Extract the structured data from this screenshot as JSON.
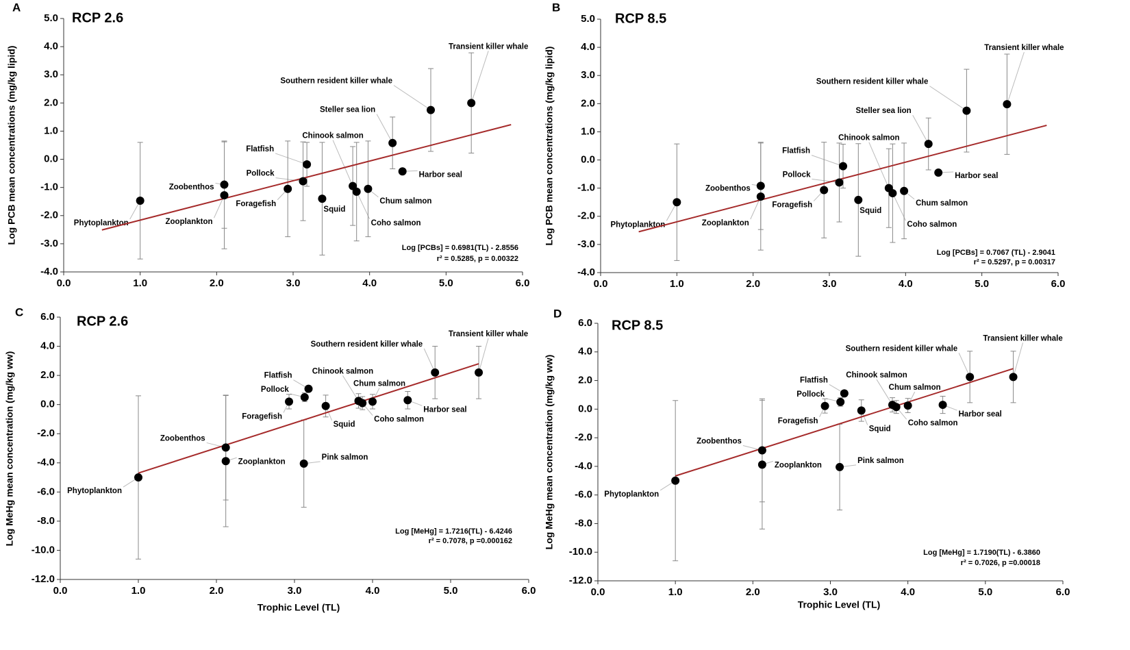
{
  "chart_data": [
    {
      "type": "scatter",
      "panel": "A",
      "title": "RCP 2.6",
      "y_label": "Log  PCB  mean concentrations (mg/kg lipid)",
      "xlim": [
        0,
        6
      ],
      "ylim": [
        -4,
        5
      ],
      "xticks": [
        {
          "value": 0,
          "label": "0.0"
        },
        {
          "value": 1,
          "label": "1.0"
        },
        {
          "value": 2,
          "label": "2.0"
        },
        {
          "value": 3,
          "label": "3.0"
        },
        {
          "value": 4,
          "label": "4.0"
        },
        {
          "value": 5,
          "label": "5.0"
        },
        {
          "value": 6,
          "label": "6.0"
        }
      ],
      "yticks": [
        {
          "value": 5,
          "label": "5.0"
        },
        {
          "value": 4,
          "label": "4.0"
        },
        {
          "value": 3,
          "label": "3.0"
        },
        {
          "value": 2,
          "label": "2.0"
        },
        {
          "value": 1,
          "label": "1.0"
        },
        {
          "value": 0,
          "label": "0.0"
        },
        {
          "value": -1,
          "label": "-1.0"
        },
        {
          "value": -2,
          "label": "-2.0"
        },
        {
          "value": -3,
          "label": "-3.0"
        },
        {
          "value": -4,
          "label": "-4.0"
        }
      ],
      "color": "#000000",
      "points": {
        "labels": [
          "Phytoplankton",
          "Zoobenthos",
          "Zooplankton",
          "Foragefish",
          "Pollock",
          "Flatfish",
          "Squid",
          "Chinook salmon",
          "Coho salmon",
          "Chum salmon",
          "Steller sea lion",
          "Harbor seal",
          "Southern resident killer whale",
          "Transient killer whale"
        ],
        "x": [
          1.0,
          2.1,
          2.1,
          2.93,
          3.13,
          3.18,
          3.38,
          3.78,
          3.83,
          3.98,
          4.3,
          4.43,
          4.8,
          5.33
        ],
        "y": [
          -1.47,
          -0.9,
          -1.28,
          -1.05,
          -0.78,
          -0.18,
          -1.4,
          -0.95,
          -1.15,
          -1.05,
          0.58,
          -0.43,
          1.75,
          2.0
        ],
        "error": [
          2.07,
          1.55,
          1.9,
          1.7,
          1.4,
          0.78,
          2.0,
          1.4,
          1.75,
          1.7,
          0.92,
          0,
          1.47,
          1.78
        ]
      },
      "fit": {
        "x": [
          0.5,
          5.85
        ],
        "y": [
          -2.51,
          1.23
        ],
        "color": "#a52a2a"
      },
      "equation": "Log [PCBs] = 0.6981(TL) - 2.8556",
      "stats": "r² = 0.5285, p = 0.00322"
    },
    {
      "type": "scatter",
      "panel": "B",
      "title": "RCP 8.5",
      "y_label": "Log  PCB mean concentrations (mg/kg lipid)",
      "xlim": [
        0,
        6
      ],
      "ylim": [
        -4,
        5
      ],
      "xticks": [
        {
          "value": 0,
          "label": "0.0"
        },
        {
          "value": 1,
          "label": "1.0"
        },
        {
          "value": 2,
          "label": "2.0"
        },
        {
          "value": 3,
          "label": "3.0"
        },
        {
          "value": 4,
          "label": "4.0"
        },
        {
          "value": 5,
          "label": "5.0"
        },
        {
          "value": 6,
          "label": "6.0"
        }
      ],
      "yticks": [
        {
          "value": 5,
          "label": "5.0"
        },
        {
          "value": 4,
          "label": "4.0"
        },
        {
          "value": 3,
          "label": "3.0"
        },
        {
          "value": 2,
          "label": "2.0"
        },
        {
          "value": 1,
          "label": "1.0"
        },
        {
          "value": 0,
          "label": "0.0"
        },
        {
          "value": -1,
          "label": "-1.0"
        },
        {
          "value": -2,
          "label": "-2.0"
        },
        {
          "value": -3,
          "label": "-3.0"
        },
        {
          "value": -4,
          "label": "-4.0"
        }
      ],
      "color": "#000000",
      "points": {
        "labels": [
          "Phytoplankton",
          "Zoobenthos",
          "Zooplankton",
          "Foragefish",
          "Pollock",
          "Flatfish",
          "Squid",
          "Chinook salmon",
          "Coho salmon",
          "Chum salmon",
          "Steller sea lion",
          "Harbor seal",
          "Southern resident killer whale",
          "Transient killer whale"
        ],
        "x": [
          1.0,
          2.1,
          2.1,
          2.93,
          3.13,
          3.18,
          3.38,
          3.78,
          3.83,
          3.98,
          4.3,
          4.43,
          4.8,
          5.33
        ],
        "y": [
          -1.5,
          -0.92,
          -1.3,
          -1.07,
          -0.8,
          -0.22,
          -1.42,
          -1.0,
          -1.18,
          -1.1,
          0.57,
          -0.45,
          1.75,
          1.98
        ],
        "error": [
          2.07,
          1.55,
          1.9,
          1.7,
          1.4,
          0.78,
          2.0,
          1.4,
          1.75,
          1.7,
          0.92,
          0,
          1.47,
          1.78
        ]
      },
      "fit": {
        "x": [
          0.5,
          5.85
        ],
        "y": [
          -2.55,
          1.23
        ],
        "color": "#a52a2a"
      },
      "equation": "Log [PCBs] = 0.7067 (TL) - 2.9041",
      "stats": "r² = 0.5297, p = 0.00317"
    },
    {
      "type": "scatter",
      "panel": "C",
      "title": "RCP 2.6",
      "y_label": "Log  MeHg mean concentration (mg/kg ww)",
      "x_label": "Trophic Level (TL)",
      "xlim": [
        0,
        6
      ],
      "ylim": [
        -12,
        6
      ],
      "xticks": [
        {
          "value": 0,
          "label": "0.0"
        },
        {
          "value": 1,
          "label": "1.0"
        },
        {
          "value": 2,
          "label": "2.0"
        },
        {
          "value": 3,
          "label": "3.0"
        },
        {
          "value": 4,
          "label": "4.0"
        },
        {
          "value": 5,
          "label": "5.0"
        },
        {
          "value": 6,
          "label": "6.0"
        }
      ],
      "yticks": [
        {
          "value": 6,
          "label": "6.0"
        },
        {
          "value": 4,
          "label": "4.0"
        },
        {
          "value": 2,
          "label": "2.0"
        },
        {
          "value": 0,
          "label": "0.0"
        },
        {
          "value": -2,
          "label": "-2.0"
        },
        {
          "value": -4,
          "label": "-4.0"
        },
        {
          "value": -6,
          "label": "-6.0"
        },
        {
          "value": -8,
          "label": "-8.0"
        },
        {
          "value": -10,
          "label": "-10.0"
        },
        {
          "value": -12,
          "label": "-12.0"
        }
      ],
      "color": "#000000",
      "points": {
        "labels": [
          "Phytoplankton",
          "Zoobenthos",
          "Zooplankton",
          "Foragefish",
          "Pollock",
          "Flatfish",
          "Pink salmon",
          "Squid",
          "Chinook salmon",
          "Coho salmon",
          "Chum salmon",
          "Harbor seal",
          "Southern resident killer whale",
          "Transient killer whale"
        ],
        "x": [
          1.0,
          2.12,
          2.12,
          2.93,
          3.13,
          3.18,
          3.12,
          3.4,
          3.82,
          3.87,
          4.0,
          4.45,
          4.8,
          5.36
        ],
        "y": [
          -5.0,
          -2.95,
          -3.88,
          0.2,
          0.5,
          1.08,
          -4.05,
          -0.1,
          0.25,
          0.1,
          0.2,
          0.3,
          2.2,
          2.2
        ],
        "error": [
          5.6,
          3.6,
          4.5,
          0.5,
          0.3,
          0.2,
          3.0,
          0.75,
          0.5,
          0.45,
          0.5,
          0.6,
          1.8,
          1.8
        ]
      },
      "fit": {
        "x": [
          1.0,
          5.36
        ],
        "y": [
          -4.7,
          2.8
        ],
        "color": "#a52a2a"
      },
      "equation": "Log [MeHg] = 1.7216(TL) - 6.4246",
      "stats": "r² = 0.7078, p =0.000162"
    },
    {
      "type": "scatter",
      "panel": "D",
      "title": "RCP 8.5",
      "y_label": "Log  MeHg mean concentration (mg/kg ww)",
      "x_label": "Trophic Level (TL)",
      "xlim": [
        0,
        6
      ],
      "ylim": [
        -12,
        6
      ],
      "xticks": [
        {
          "value": 0,
          "label": "0.0"
        },
        {
          "value": 1,
          "label": "1.0"
        },
        {
          "value": 2,
          "label": "2.0"
        },
        {
          "value": 3,
          "label": "3.0"
        },
        {
          "value": 4,
          "label": "4.0"
        },
        {
          "value": 5,
          "label": "5.0"
        },
        {
          "value": 6,
          "label": "6.0"
        }
      ],
      "yticks": [
        {
          "value": 6,
          "label": "6.0"
        },
        {
          "value": 4,
          "label": "4.0"
        },
        {
          "value": 2,
          "label": "2.0"
        },
        {
          "value": 0,
          "label": "0.0"
        },
        {
          "value": -2,
          "label": "-2.0"
        },
        {
          "value": -4,
          "label": "-4.0"
        },
        {
          "value": -6,
          "label": "-6.0"
        },
        {
          "value": -8,
          "label": "-8.0"
        },
        {
          "value": -10,
          "label": "-10.0"
        },
        {
          "value": -12,
          "label": "-12.0"
        }
      ],
      "color": "#000000",
      "points": {
        "labels": [
          "Phytoplankton",
          "Zoobenthos",
          "Zooplankton",
          "Foragefish",
          "Pollock",
          "Flatfish",
          "Pink salmon",
          "Squid",
          "Chinook salmon",
          "Coho salmon",
          "Chum salmon",
          "Harbor seal",
          "Southern resident killer whale",
          "Transient killer whale"
        ],
        "x": [
          1.0,
          2.12,
          2.12,
          2.93,
          3.13,
          3.18,
          3.12,
          3.4,
          3.8,
          3.85,
          4.0,
          4.45,
          4.8,
          5.36
        ],
        "y": [
          -5.0,
          -2.88,
          -3.88,
          0.22,
          0.5,
          1.1,
          -4.05,
          -0.1,
          0.3,
          0.15,
          0.25,
          0.3,
          2.25,
          2.25
        ],
        "error": [
          5.6,
          3.6,
          4.5,
          0.5,
          0.3,
          0.2,
          3.0,
          0.75,
          0.5,
          0.45,
          0.5,
          0.6,
          1.8,
          1.8
        ]
      },
      "fit": {
        "x": [
          1.0,
          5.36
        ],
        "y": [
          -4.67,
          2.83
        ],
        "color": "#a52a2a"
      },
      "equation": "Log [MeHg] = 1.7190(TL) - 6.3860",
      "stats": "r² = 0.7026, p =0.00018"
    }
  ]
}
